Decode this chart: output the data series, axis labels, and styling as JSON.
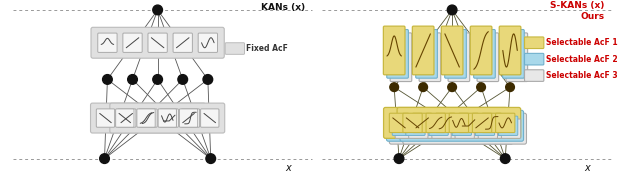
{
  "figsize": [
    6.4,
    1.75
  ],
  "dpi": 100,
  "bg_color": "#ffffff",
  "kan_title": "KANs (x)",
  "skan_title": "S-KANs (x)",
  "skan_subtitle": "Ours",
  "x_label": "x",
  "legend_fixed": "Fixed AcF",
  "legend_sel1": "Selectable AcF 1",
  "legend_sel2": "Selectable AcF 2",
  "legend_sel3": "Selectable AcF 3",
  "fixed_acf_color": "#e0e0e0",
  "sel1_color": "#e8d87a",
  "sel2_color": "#a8d8ea",
  "sel3_color": "#e8e8e8",
  "node_color": "#111111",
  "skan_node_color": "#3d2b00",
  "edge_color": "#555555",
  "skan_edge_color": "#555533",
  "dotted_color": "#999999",
  "title_color_kan": "#111111",
  "title_color_skan": "#cc0000",
  "box_edge_color": "#bbbbbb",
  "sel1_edge": "#c8b840",
  "sel2_edge": "#70b0cc",
  "sel3_edge": "#aaaaaa"
}
